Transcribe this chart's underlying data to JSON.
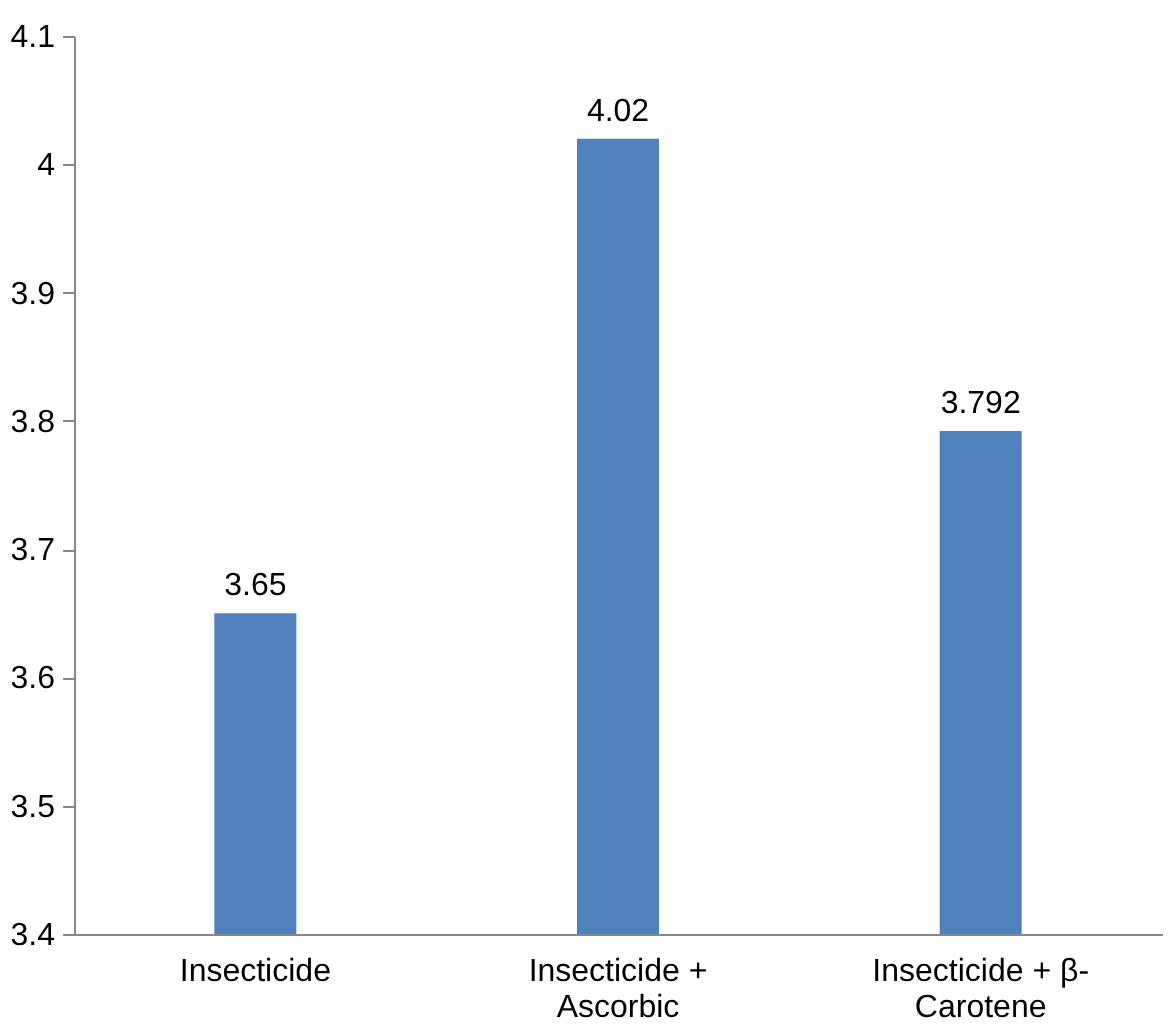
{
  "chart_data": {
    "type": "bar",
    "categories": [
      "Insecticide",
      "Insecticide + Ascorbic",
      "Insecticide + β-Carotene"
    ],
    "values": [
      3.65,
      4.02,
      3.792
    ],
    "color": "#4f81bd",
    "ylim": [
      3.4,
      4.1
    ],
    "yticks": [
      3.4,
      3.5,
      3.6,
      3.7,
      3.8,
      3.9,
      4,
      4.1
    ],
    "grid": false,
    "data_labels": true
  }
}
